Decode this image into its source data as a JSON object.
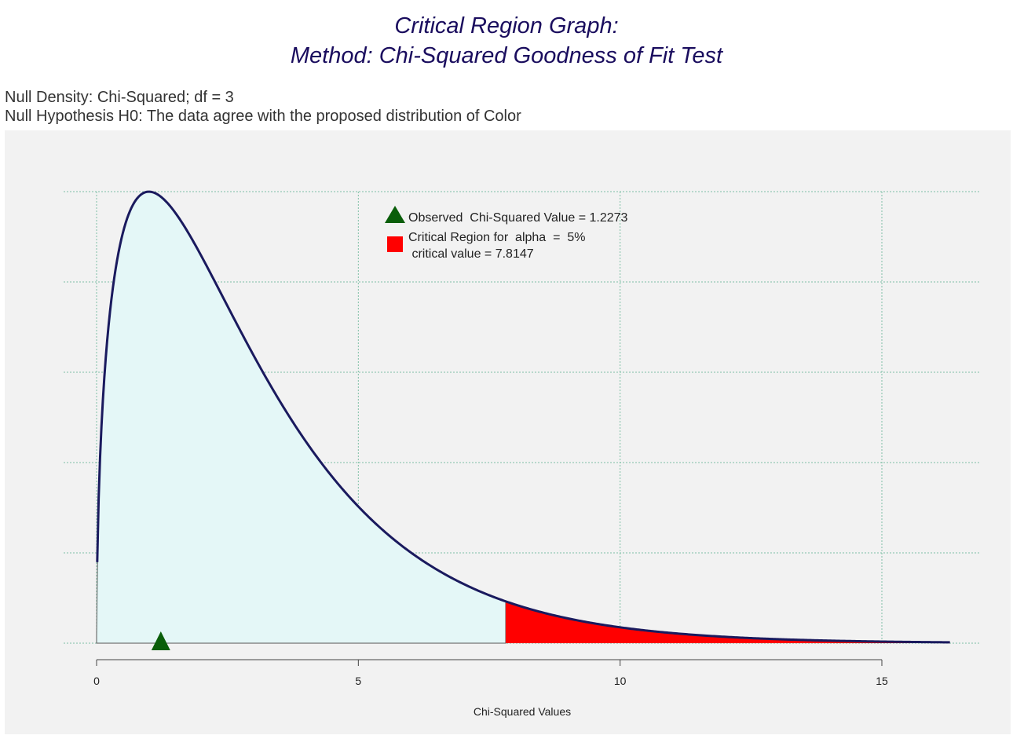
{
  "title": {
    "line1": "Critical Region Graph:",
    "line2": "Method: Chi-Squared Goodness of Fit Test"
  },
  "subtitle": {
    "line1": "Null Density: Chi-Squared; df = 3",
    "line2": "Null Hypothesis H0: The data agree with the proposed distribution of Color"
  },
  "colors": {
    "title": "#1a0d5e",
    "curve": "#1a1a5e",
    "fill_acceptance": "#e4f7f7",
    "fill_critical": "#ff0000",
    "observed_marker": "#0a5e0a",
    "grid": "#7fbfa6",
    "panel_background": "#f2f2f2"
  },
  "chart_data": {
    "type": "area",
    "distribution": "chi-squared",
    "df": 3,
    "alpha_percent": 5,
    "observed_value": 1.2273,
    "critical_value": 7.8147,
    "xlabel": "Chi-Squared Values",
    "ylabel": "",
    "xlim": [
      0,
      16.3
    ],
    "ylim": [
      0,
      0.242
    ],
    "x_ticks": [
      0,
      5,
      10,
      15
    ],
    "x_tick_labels": [
      "0",
      "5",
      "10",
      "15"
    ],
    "y_tick_labels": [],
    "grid": true,
    "legend_position": "top-center",
    "legend": [
      {
        "marker": "triangle",
        "label": "Observed  Chi-Squared Value = 1.2273"
      },
      {
        "marker": "square",
        "label": "Critical Region for  alpha  =  5%"
      },
      {
        "marker": "none",
        "label": " critical value = 7.8147"
      }
    ]
  }
}
